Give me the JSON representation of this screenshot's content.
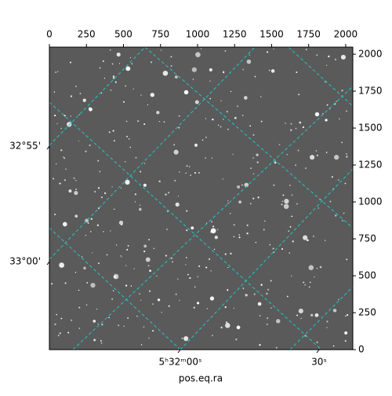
{
  "chart_data": {
    "type": "image",
    "xlabel": "pos.eq.ra",
    "xlim": [
      0,
      2048
    ],
    "xticks": [
      0,
      250,
      500,
      750,
      1000,
      1250,
      1500,
      1750,
      2000
    ],
    "ylim": [
      0,
      2048
    ],
    "yticks": [
      0,
      250,
      500,
      750,
      1000,
      1250,
      1500,
      1750,
      2000
    ],
    "ra_ticks": [
      "5ʰ32ᵐ00ˢ",
      "30ˢ"
    ],
    "dec_ticks": [
      "32°55'",
      "33°00'"
    ],
    "grid_color": "#1fc8c8"
  }
}
